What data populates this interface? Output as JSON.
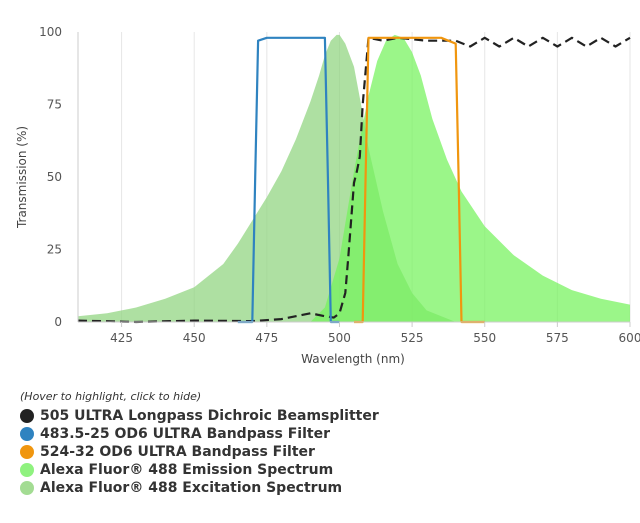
{
  "chart_data": {
    "type": "area",
    "xlabel": "Wavelength (nm)",
    "ylabel": "Transmission (%)",
    "xlim": [
      410,
      600
    ],
    "ylim": [
      0,
      100
    ],
    "x_ticks": [
      "425",
      "450",
      "475",
      "500",
      "525",
      "550",
      "575",
      "600"
    ],
    "y_ticks": [
      "0",
      "25",
      "50",
      "75",
      "100"
    ],
    "grid": "vertical",
    "series": [
      {
        "name": "Alexa Fluor® 488 Excitation Spectrum",
        "kind": "area",
        "color": "#8fd47e",
        "x": [
          410,
          420,
          430,
          440,
          450,
          460,
          465,
          470,
          475,
          480,
          485,
          490,
          493,
          495,
          497,
          499,
          500,
          502,
          505,
          508,
          510,
          515,
          520,
          525,
          530,
          540
        ],
        "y": [
          2,
          3,
          5,
          8,
          12,
          20,
          27,
          35,
          43,
          52,
          63,
          76,
          85,
          92,
          97,
          99,
          99,
          96,
          88,
          72,
          60,
          38,
          20,
          10,
          4,
          0
        ]
      },
      {
        "name": "Alexa Fluor® 488 Emission Spectrum",
        "kind": "area",
        "color": "#75f25c",
        "x": [
          490,
          495,
          500,
          505,
          508,
          510,
          513,
          516,
          519,
          522,
          525,
          528,
          532,
          537,
          542,
          550,
          560,
          570,
          580,
          590,
          600
        ],
        "y": [
          0,
          5,
          22,
          52,
          68,
          78,
          90,
          97,
          99,
          98,
          93,
          85,
          70,
          56,
          45,
          33,
          23,
          16,
          11,
          8,
          6
        ]
      },
      {
        "name": "505 ULTRA Longpass Dichroic Beamsplitter",
        "kind": "dashed-line",
        "color": "#222222",
        "x": [
          410,
          430,
          450,
          470,
          480,
          485,
          490,
          495,
          498,
          500,
          502,
          503,
          504,
          505,
          506,
          507,
          508,
          510,
          515,
          520,
          530,
          540,
          545,
          550,
          555,
          560,
          565,
          570,
          575,
          580,
          585,
          590,
          595,
          600
        ],
        "y": [
          0.5,
          0,
          0.5,
          0.3,
          1,
          2,
          3,
          2,
          1.5,
          3,
          10,
          22,
          35,
          48,
          52,
          57,
          75,
          98,
          97,
          98,
          97,
          97,
          95,
          98,
          95,
          98,
          95,
          98,
          95,
          98,
          95,
          98,
          95,
          98
        ]
      },
      {
        "name": "483.5-25 OD6 ULTRA Bandpass Filter",
        "kind": "line",
        "color": "#2f83c0",
        "x": [
          465,
          470,
          471,
          472,
          475,
          480,
          485,
          490,
          495,
          496,
          497,
          500
        ],
        "y": [
          0,
          0,
          50,
          97,
          98,
          98,
          98,
          98,
          98,
          50,
          0,
          0
        ]
      },
      {
        "name": "524-32 OD6 ULTRA Bandpass Filter",
        "kind": "line",
        "color": "#f0960f",
        "x": [
          505,
          508,
          509,
          510,
          515,
          520,
          525,
          530,
          535,
          540,
          541,
          542,
          545,
          550
        ],
        "y": [
          0,
          0,
          50,
          98,
          98,
          98,
          98,
          98,
          98,
          96,
          50,
          0,
          0,
          0
        ]
      }
    ]
  },
  "legend": {
    "hint": "(Hover to highlight, click to hide)",
    "items": [
      {
        "label": "505 ULTRA Longpass Dichroic Beamsplitter",
        "color": "#222222"
      },
      {
        "label": "483.5-25 OD6 ULTRA Bandpass Filter",
        "color": "#2f83c0"
      },
      {
        "label": "524-32 OD6 ULTRA Bandpass Filter",
        "color": "#f0960f"
      },
      {
        "label": "Alexa Fluor® 488 Emission Spectrum",
        "color": "#8ff27f"
      },
      {
        "label": "Alexa Fluor® 488 Excitation Spectrum",
        "color": "#a3dc93"
      }
    ]
  }
}
